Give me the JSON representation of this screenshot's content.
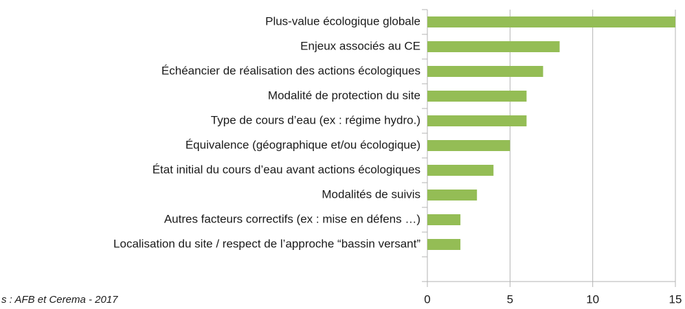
{
  "chart_data": {
    "type": "hbar",
    "categories": [
      "Plus-value écologique globale",
      "Enjeux associés au CE",
      "Échéancier de réalisation des actions écologiques",
      "Modalité de protection du site",
      "Type de cours d’eau (ex : régime hydro.)",
      "Équivalence (géographique et/ou écologique)",
      "État initial du cours d’eau avant actions écologiques",
      "Modalités de suivis",
      "Autres facteurs correctifs (ex : mise en défens …)",
      "Localisation du site / respect de l’approche “bassin versant”",
      null
    ],
    "values": [
      15,
      8,
      7,
      6,
      6,
      5,
      4,
      3,
      2,
      2,
      null
    ],
    "color": "#94bd55",
    "xlim": [
      0,
      15
    ],
    "xticks": [
      0,
      5,
      10,
      15
    ],
    "grid": true,
    "source": "s : AFB et Cerema - 2017"
  }
}
